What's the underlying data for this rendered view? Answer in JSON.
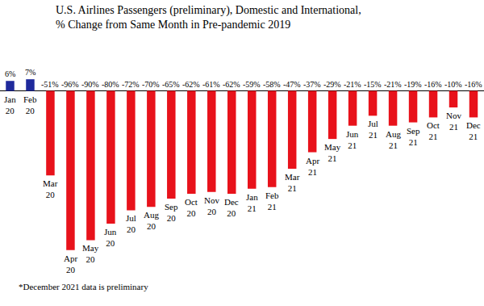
{
  "chart_data": {
    "type": "bar",
    "title": "U.S. Airlines Passengers (preliminary), Domestic and International,\n% Change from Same Month in Pre-pandemic 2019",
    "categories": [
      "Jan 20",
      "Feb 20",
      "Mar 20",
      "Apr 20",
      "May 20",
      "Jun 20",
      "Jul 20",
      "Aug 20",
      "Sep 20",
      "Oct 20",
      "Nov 20",
      "Dec 20",
      "Jan 21",
      "Feb 21",
      "Mar 21",
      "Apr 21",
      "May 21",
      "Jun 21",
      "Jul 21",
      "Aug 21",
      "Sep 21",
      "Oct 21",
      "Nov 21",
      "Dec 21"
    ],
    "values": [
      6,
      7,
      -51,
      -96,
      -90,
      -80,
      -72,
      -70,
      -65,
      -62,
      -61,
      -62,
      -59,
      -58,
      -47,
      -37,
      -29,
      -21,
      -15,
      -21,
      -19,
      -16,
      -10,
      -16
    ],
    "value_labels": [
      "6%",
      "7%",
      "-51%",
      "-96%",
      "-90%",
      "-80%",
      "-72%",
      "-70%",
      "-65%",
      "-62%",
      "-61%",
      "-62%",
      "-59%",
      "-58%",
      "-47%",
      "-37%",
      "-29%",
      "-21%",
      "-15%",
      "-21%",
      "-19%",
      "-16%",
      "-10%",
      "-16%"
    ],
    "colors": [
      "#1f2a9c",
      "#1f2a9c",
      "#e8121b",
      "#e8121b",
      "#e8121b",
      "#e8121b",
      "#e8121b",
      "#e8121b",
      "#e8121b",
      "#e8121b",
      "#e8121b",
      "#e8121b",
      "#e8121b",
      "#e8121b",
      "#e8121b",
      "#e8121b",
      "#e8121b",
      "#e8121b",
      "#e8121b",
      "#e8121b",
      "#e8121b",
      "#e8121b",
      "#e8121b",
      "#e8121b"
    ],
    "ylim": [
      -100,
      10
    ],
    "grid": false,
    "data_labels": true,
    "tick_labels": false,
    "annotations": [
      "*December 2021 data is preliminary"
    ]
  }
}
